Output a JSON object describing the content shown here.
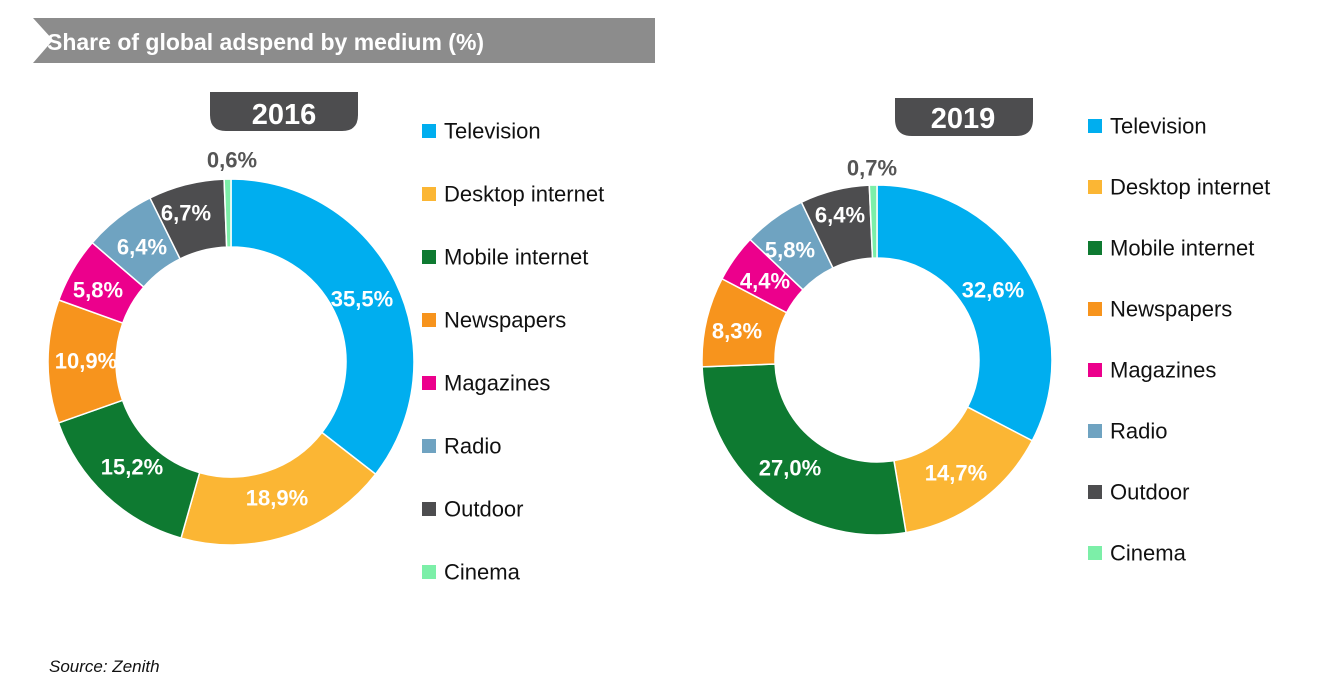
{
  "title": "Share of global adspend by medium (%)",
  "source": "Source: Zenith",
  "colors": {
    "Television": "#00AEEF",
    "Desktop internet": "#FBB634",
    "Mobile internet": "#0E7A31",
    "Newspapers": "#F7941D",
    "Magazines": "#EC008C",
    "Radio": "#6FA3C1",
    "Outdoor": "#4D4D4F",
    "Cinema": "#7CEFA8"
  },
  "chart_data": [
    {
      "type": "pie",
      "title": "2016",
      "categories": [
        "Television",
        "Desktop internet",
        "Mobile internet",
        "Newspapers",
        "Magazines",
        "Radio",
        "Outdoor",
        "Cinema"
      ],
      "values": [
        35.5,
        18.9,
        15.2,
        10.9,
        5.8,
        6.4,
        6.7,
        0.6
      ],
      "labels": [
        "35,5%",
        "18,9%",
        "15,2%",
        "10,9%",
        "5,8%",
        "6,4%",
        "6,7%",
        "0,6%"
      ],
      "legend": [
        "Television",
        "Desktop internet",
        "Mobile internet",
        "Newspapers",
        "Magazines",
        "Radio",
        "Outdoor",
        "Cinema"
      ],
      "legend_position": "right"
    },
    {
      "type": "pie",
      "title": "2019",
      "categories": [
        "Television",
        "Desktop internet",
        "Mobile internet",
        "Newspapers",
        "Magazines",
        "Radio",
        "Outdoor",
        "Cinema"
      ],
      "values": [
        32.6,
        14.7,
        27.0,
        8.3,
        4.4,
        5.8,
        6.4,
        0.7
      ],
      "labels": [
        "32,6%",
        "14,7%",
        "27,0%",
        "8,3%",
        "4,4%",
        "5,8%",
        "6,4%",
        "0,7%"
      ],
      "legend": [
        "Television",
        "Desktop internet",
        "Mobile internet",
        "Newspapers",
        "Magazines",
        "Radio",
        "Outdoor",
        "Cinema"
      ],
      "legend_position": "right"
    }
  ]
}
